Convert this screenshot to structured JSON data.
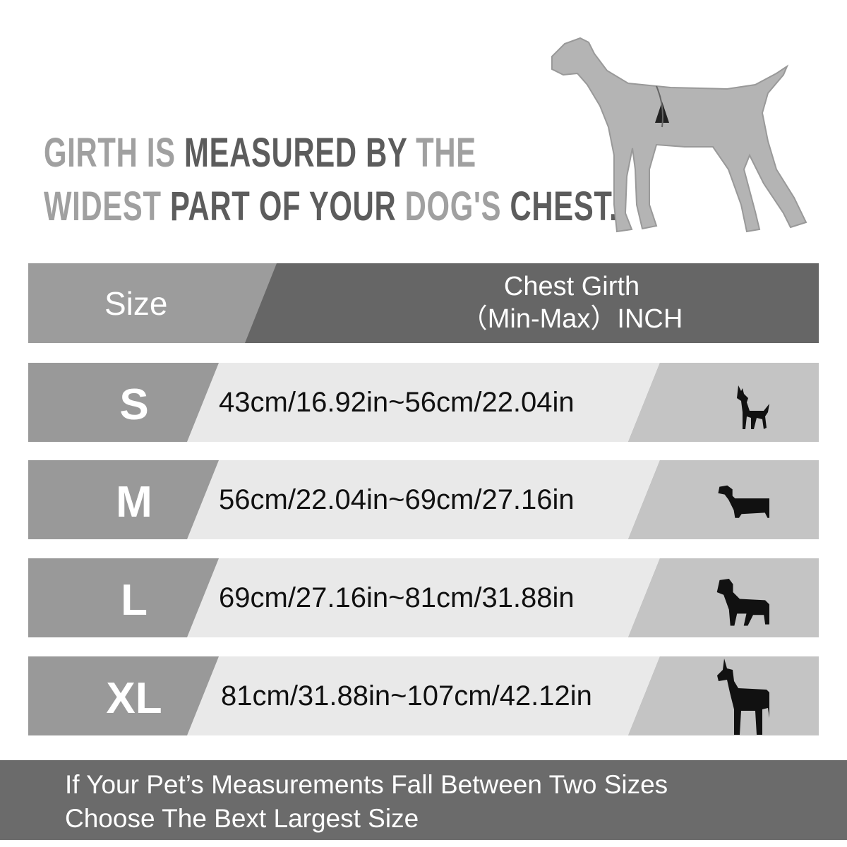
{
  "headline": {
    "line1": [
      {
        "text": "GIRTH IS ",
        "tone": "light"
      },
      {
        "text": "MEASURED BY ",
        "tone": "dark"
      },
      {
        "text": "THE",
        "tone": "light"
      }
    ],
    "line2": [
      {
        "text": "WIDEST ",
        "tone": "light"
      },
      {
        "text": "PART OF YOUR ",
        "tone": "dark"
      },
      {
        "text": "DOG'S ",
        "tone": "light"
      },
      {
        "text": "CHEST.",
        "tone": "dark"
      }
    ]
  },
  "table": {
    "header": {
      "size": "Size",
      "girth_line1": "Chest Girth",
      "girth_line2": "（Min-Max）INCH"
    },
    "rows": [
      {
        "size": "S",
        "range": "43cm/16.92in~56cm/22.04in",
        "icon": "small-dog-icon"
      },
      {
        "size": "M",
        "range": "56cm/22.04in~69cm/27.16in",
        "icon": "dachshund-icon"
      },
      {
        "size": "L",
        "range": "69cm/27.16in~81cm/31.88in",
        "icon": "large-dog-icon"
      },
      {
        "size": "XL",
        "range": "81cm/31.88in~107cm/42.12in",
        "icon": "great-dane-icon"
      }
    ]
  },
  "footer": {
    "line1": "If Your Pet’s Measurements Fall Between Two Sizes",
    "line2": "Choose The Bext Largest Size"
  },
  "colors": {
    "header_dark": "#666666",
    "header_light": "#9c9c9c",
    "row_mid": "#e9e9e9",
    "row_right": "#c4c4c4",
    "footer": "#6b6b6b"
  }
}
